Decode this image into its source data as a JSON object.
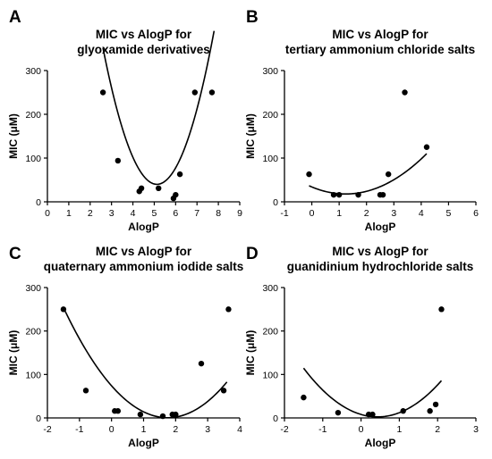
{
  "chart_data": [
    {
      "type": "scatter",
      "panel_label": "A",
      "title": [
        "MIC vs AlogP for",
        "glyoxamide derivatives"
      ],
      "xlabel": "AlogP",
      "ylabel": "MIC (μM)",
      "xlim": [
        0,
        9
      ],
      "ylim": [
        0,
        300
      ],
      "xticks": [
        0,
        1,
        2,
        3,
        4,
        5,
        6,
        7,
        8,
        9
      ],
      "yticks": [
        0,
        100,
        200,
        300
      ],
      "grid": false,
      "points": {
        "x": [
          2.6,
          3.3,
          4.3,
          4.4,
          5.2,
          5.9,
          6.0,
          6.2,
          6.9,
          7.7
        ],
        "y": [
          250,
          94,
          24,
          31,
          31,
          8,
          16,
          63,
          250,
          250
        ]
      },
      "fit_curve": {
        "x_range": [
          2.6,
          7.8
        ],
        "coefficients": [
          1325,
          -501.6,
          48.95
        ]
      }
    },
    {
      "type": "scatter",
      "panel_label": "B",
      "title": [
        "MIC vs AlogP for",
        "tertiary ammonium chloride salts"
      ],
      "xlabel": "AlogP",
      "ylabel": "MIC (μM)",
      "xlim": [
        -1,
        6
      ],
      "ylim": [
        0,
        300
      ],
      "xticks": [
        -1,
        0,
        1,
        2,
        3,
        4,
        5,
        6
      ],
      "yticks": [
        0,
        100,
        200,
        300
      ],
      "grid": false,
      "points": {
        "x": [
          -0.1,
          0.8,
          1.0,
          1.7,
          2.5,
          2.6,
          2.8,
          3.4,
          4.2
        ],
        "y": [
          63,
          16,
          16,
          16,
          16,
          16,
          63,
          250,
          125
        ]
      },
      "fit_curve": {
        "x_range": [
          -0.1,
          4.2
        ],
        "coefficients": [
          34,
          -26,
          10.5
        ]
      }
    },
    {
      "type": "scatter",
      "panel_label": "C",
      "title": [
        "MIC vs AlogP for",
        "quaternary ammonium iodide salts"
      ],
      "xlabel": "AlogP",
      "ylabel": "MIC (μM)",
      "xlim": [
        -2,
        4
      ],
      "ylim": [
        0,
        300
      ],
      "xticks": [
        -2,
        -1,
        0,
        1,
        2,
        3,
        4
      ],
      "yticks": [
        0,
        100,
        200,
        300
      ],
      "grid": false,
      "points": {
        "x": [
          -1.5,
          -0.8,
          0.1,
          0.2,
          0.9,
          1.6,
          1.9,
          2.0,
          2.8,
          3.5,
          3.65
        ],
        "y": [
          250,
          63,
          16,
          16,
          8,
          4,
          8,
          8,
          125,
          63,
          250
        ]
      },
      "fit_curve": {
        "x_range": [
          -1.5,
          3.6
        ],
        "coefficients": [
          74,
          -84,
          24
        ]
      }
    },
    {
      "type": "scatter",
      "panel_label": "D",
      "title": [
        "MIC vs AlogP for",
        "guanidinium hydrochloride salts"
      ],
      "xlabel": "AlogP",
      "ylabel": "MIC (μM)",
      "xlim": [
        -2,
        3
      ],
      "ylim": [
        0,
        300
      ],
      "xticks": [
        -2,
        -1,
        0,
        1,
        2,
        3
      ],
      "yticks": [
        0,
        100,
        200,
        300
      ],
      "grid": false,
      "points": {
        "x": [
          -1.5,
          -0.6,
          0.2,
          0.3,
          1.1,
          1.8,
          1.95,
          2.1
        ],
        "y": [
          47,
          12,
          8,
          8,
          16,
          16,
          31,
          250
        ]
      },
      "fit_curve": {
        "x_range": [
          -1.5,
          2.1
        ],
        "coefficients": [
          8,
          -26,
          30
        ]
      }
    }
  ]
}
